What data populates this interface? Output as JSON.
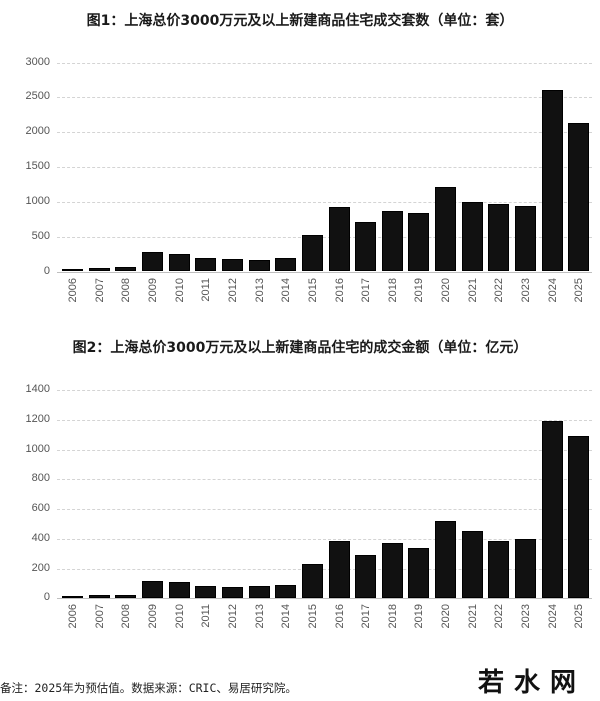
{
  "chart_data": [
    {
      "type": "bar",
      "title": "图1：上海总价3000万元及以上新建商品住宅成交套数（单位：套）",
      "xlabel": "",
      "ylabel": "",
      "unit": "套",
      "categories": [
        "2006",
        "2007",
        "2008",
        "2009",
        "2010",
        "2011",
        "2012",
        "2013",
        "2014",
        "2015",
        "2016",
        "2017",
        "2018",
        "2019",
        "2020",
        "2021",
        "2022",
        "2023",
        "2024",
        "2025"
      ],
      "values": [
        34,
        49,
        63,
        283,
        254,
        197,
        178,
        164,
        197,
        531,
        925,
        704,
        862,
        839,
        1207,
        1001,
        973,
        944,
        2611,
        2127
      ],
      "ylim": [
        0,
        3000
      ],
      "yticks": [
        0,
        500,
        1000,
        1500,
        2000,
        2500,
        3000
      ],
      "grid": true,
      "bar_color": "#111111"
    },
    {
      "type": "bar",
      "title": "图2：上海总价3000万元及以上新建商品住宅的成交金额（单位：亿元）",
      "xlabel": "",
      "ylabel": "",
      "unit": "亿元",
      "categories": [
        "2006",
        "2007",
        "2008",
        "2009",
        "2010",
        "2011",
        "2012",
        "2013",
        "2014",
        "2015",
        "2016",
        "2017",
        "2018",
        "2019",
        "2020",
        "2021",
        "2022",
        "2023",
        "2024",
        "2025"
      ],
      "values": [
        15,
        22,
        22,
        114,
        108,
        83,
        76,
        83,
        87,
        231,
        384,
        291,
        374,
        341,
        520,
        453,
        388,
        397,
        1193,
        1090
      ],
      "ylim": [
        0,
        1400
      ],
      "yticks": [
        0,
        200,
        400,
        600,
        800,
        1000,
        1200,
        1400
      ],
      "grid": true,
      "bar_color": "#111111"
    }
  ],
  "note": "备注：2025年为预估值。数据来源：CRIC、易居研究院。",
  "watermark": "若水网"
}
